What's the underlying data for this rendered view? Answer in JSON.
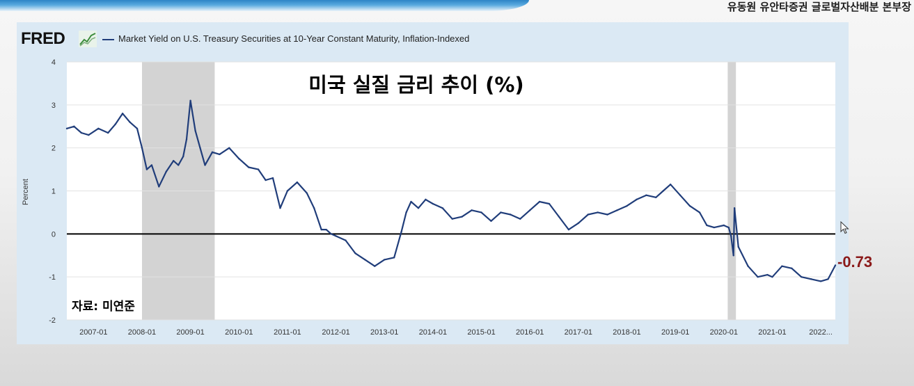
{
  "header": {
    "corner_caption": "유동원 유안타증권 글로벌자산배분 본부장"
  },
  "fred": {
    "logo_text": "FRED",
    "logo_mark": "fred-chart-logo-icon"
  },
  "colors": {
    "series": "#203d7a",
    "recession": "#d3d3d3",
    "plot_bg": "#ffffff",
    "frame_bg": "#dbe9f4",
    "annotation_red": "#8b1a1a",
    "zero_line": "#000000"
  },
  "chart_data": {
    "type": "line",
    "title": "미국 실질 금리 추이 (%)",
    "legend": "Market Yield on U.S. Treasury Securities at 10-Year Constant Maturity, Inflation-Indexed",
    "xlabel": "",
    "ylabel": "Percent",
    "ylim": [
      -2,
      4
    ],
    "yticks": [
      -2,
      -1,
      0,
      1,
      2,
      3,
      4
    ],
    "xlim": [
      2006.45,
      2022.3
    ],
    "xticks": [
      {
        "x": 2007.0,
        "label": "2007-01"
      },
      {
        "x": 2008.0,
        "label": "2008-01"
      },
      {
        "x": 2009.0,
        "label": "2009-01"
      },
      {
        "x": 2010.0,
        "label": "2010-01"
      },
      {
        "x": 2011.0,
        "label": "2011-01"
      },
      {
        "x": 2012.0,
        "label": "2012-01"
      },
      {
        "x": 2013.0,
        "label": "2013-01"
      },
      {
        "x": 2014.0,
        "label": "2014-01"
      },
      {
        "x": 2015.0,
        "label": "2015-01"
      },
      {
        "x": 2016.0,
        "label": "2016-01"
      },
      {
        "x": 2017.0,
        "label": "2017-01"
      },
      {
        "x": 2018.0,
        "label": "2018-01"
      },
      {
        "x": 2019.0,
        "label": "2019-01"
      },
      {
        "x": 2020.0,
        "label": "2020-01"
      },
      {
        "x": 2021.0,
        "label": "2021-01"
      },
      {
        "x": 2022.0,
        "label": "2022..."
      }
    ],
    "grid": "horizontal",
    "zero_line": true,
    "recessions": [
      [
        2008.0,
        2009.5
      ],
      [
        2020.08,
        2020.25
      ]
    ],
    "series": [
      {
        "name": "Market Yield on U.S. Treasury Securities at 10-Year Constant Maturity, Inflation-Indexed",
        "x": [
          2006.45,
          2006.6,
          2006.75,
          2006.9,
          2007.1,
          2007.3,
          2007.45,
          2007.6,
          2007.75,
          2007.9,
          2008.0,
          2008.1,
          2008.2,
          2008.35,
          2008.5,
          2008.65,
          2008.75,
          2008.85,
          2008.92,
          2009.0,
          2009.1,
          2009.2,
          2009.3,
          2009.45,
          2009.6,
          2009.8,
          2010.0,
          2010.2,
          2010.4,
          2010.55,
          2010.7,
          2010.85,
          2011.0,
          2011.2,
          2011.4,
          2011.55,
          2011.7,
          2011.8,
          2011.9,
          2012.0,
          2012.2,
          2012.4,
          2012.6,
          2012.8,
          2013.0,
          2013.2,
          2013.35,
          2013.45,
          2013.55,
          2013.7,
          2013.85,
          2014.0,
          2014.2,
          2014.4,
          2014.6,
          2014.8,
          2015.0,
          2015.2,
          2015.4,
          2015.6,
          2015.8,
          2016.0,
          2016.2,
          2016.4,
          2016.6,
          2016.8,
          2017.0,
          2017.2,
          2017.4,
          2017.6,
          2017.8,
          2018.0,
          2018.2,
          2018.4,
          2018.6,
          2018.75,
          2018.9,
          2019.1,
          2019.3,
          2019.5,
          2019.65,
          2019.8,
          2020.0,
          2020.1,
          2020.15,
          2020.2,
          2020.22,
          2020.3,
          2020.5,
          2020.7,
          2020.9,
          2021.0,
          2021.2,
          2021.4,
          2021.6,
          2021.8,
          2022.0,
          2022.15,
          2022.3
        ],
        "y": [
          2.45,
          2.5,
          2.35,
          2.3,
          2.45,
          2.35,
          2.55,
          2.8,
          2.6,
          2.45,
          2.0,
          1.5,
          1.6,
          1.1,
          1.45,
          1.7,
          1.6,
          1.8,
          2.2,
          3.1,
          2.4,
          2.0,
          1.6,
          1.9,
          1.85,
          2.0,
          1.75,
          1.55,
          1.5,
          1.25,
          1.3,
          0.6,
          1.0,
          1.2,
          0.95,
          0.6,
          0.1,
          0.1,
          0.0,
          -0.05,
          -0.15,
          -0.45,
          -0.6,
          -0.75,
          -0.6,
          -0.55,
          0.05,
          0.5,
          0.75,
          0.6,
          0.8,
          0.7,
          0.6,
          0.35,
          0.4,
          0.55,
          0.5,
          0.3,
          0.5,
          0.45,
          0.35,
          0.55,
          0.75,
          0.7,
          0.4,
          0.1,
          0.25,
          0.45,
          0.5,
          0.45,
          0.55,
          0.65,
          0.8,
          0.9,
          0.85,
          1.0,
          1.15,
          0.9,
          0.65,
          0.5,
          0.2,
          0.15,
          0.2,
          0.15,
          -0.05,
          -0.5,
          0.6,
          -0.3,
          -0.75,
          -1.0,
          -0.95,
          -1.0,
          -0.75,
          -0.8,
          -1.0,
          -1.05,
          -1.1,
          -1.05,
          -0.73
        ]
      }
    ],
    "annotations": [
      {
        "text": "자료: 미연준",
        "position": "bottom-left"
      },
      {
        "text": "-0.73",
        "position": "right-end"
      }
    ]
  }
}
